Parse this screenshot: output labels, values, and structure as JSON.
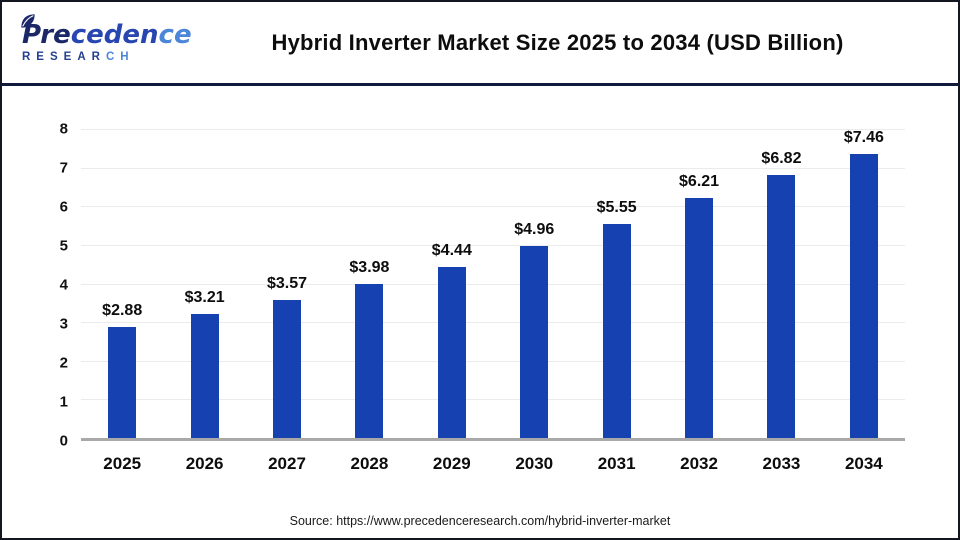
{
  "logo": {
    "line1_parts": [
      "Pre",
      "ceden",
      "ce"
    ],
    "line2_parts": [
      "RESEAR",
      "CH"
    ]
  },
  "header": {
    "title": "Hybrid Inverter Market Size 2025 to 2034 (USD Billion)"
  },
  "chart_data": {
    "type": "bar",
    "title": "Hybrid Inverter Market Size 2025 to 2034 (USD Billion)",
    "categories": [
      "2025",
      "2026",
      "2027",
      "2028",
      "2029",
      "2030",
      "2031",
      "2032",
      "2033",
      "2034"
    ],
    "values": [
      2.88,
      3.21,
      3.57,
      3.98,
      4.44,
      4.96,
      5.55,
      6.21,
      6.82,
      7.46
    ],
    "value_labels": [
      "$2.88",
      "$3.21",
      "$3.57",
      "$3.98",
      "$4.44",
      "$4.96",
      "$5.55",
      "$6.21",
      "$6.82",
      "$7.46"
    ],
    "yticks": [
      "8",
      "7",
      "6",
      "5",
      "4",
      "3",
      "2",
      "1",
      "0"
    ],
    "ylim": [
      0,
      8
    ],
    "xlabel": "",
    "ylabel": "",
    "grid": true,
    "legend": "none",
    "bar_color": "#1641b0",
    "axis_line_color": "#a9a9a9"
  },
  "footer": {
    "source": "Source: https://www.precedenceresearch.com/hybrid-inverter-market"
  }
}
